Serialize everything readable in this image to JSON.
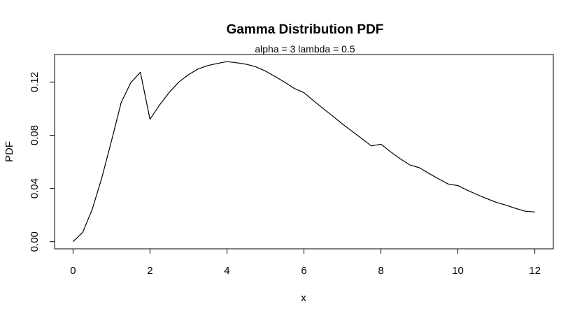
{
  "chart_data": {
    "type": "line",
    "title": "Gamma Distribution PDF",
    "subtitle": "alpha = 3  lambda = 0.5",
    "xlabel": "x",
    "ylabel": "PDF",
    "xlim": [
      -0.48,
      12.48
    ],
    "ylim": [
      -0.0054,
      0.1407
    ],
    "x_ticks": [
      0,
      2,
      4,
      6,
      8,
      10,
      12
    ],
    "x_tick_labels": [
      "0",
      "2",
      "4",
      "6",
      "8",
      "10",
      "12"
    ],
    "y_ticks": [
      0,
      0.04,
      0.08,
      0.12
    ],
    "y_tick_labels": [
      "0.00",
      "0.04",
      "0.08",
      "0.12"
    ],
    "grid": false,
    "series": [
      {
        "color": "#000000",
        "x": [
          0,
          0.25,
          0.5,
          0.75,
          1,
          1.25,
          1.5,
          1.75,
          2,
          2.25,
          2.5,
          2.75,
          3,
          3.25,
          3.5,
          3.75,
          4,
          4.25,
          4.5,
          4.75,
          5,
          5.25,
          5.5,
          5.75,
          6,
          6.25,
          6.5,
          6.75,
          7,
          7.25,
          7.5,
          7.75,
          8,
          8.25,
          8.5,
          8.75,
          9,
          9.25,
          9.5,
          9.75,
          10,
          10.25,
          10.5,
          10.75,
          11,
          11.25,
          11.5,
          11.75,
          12
        ],
        "values": [
          0,
          0.00689,
          0.02433,
          0.04833,
          0.07582,
          0.10452,
          0.11947,
          0.1274,
          0.09197,
          0.10281,
          0.11223,
          0.12006,
          0.12551,
          0.1298,
          0.1324,
          0.13399,
          0.13534,
          0.1345,
          0.13342,
          0.13147,
          0.12826,
          0.1242,
          0.1199,
          0.11522,
          0.11202,
          0.10592,
          0.10006,
          0.09436,
          0.08848,
          0.083,
          0.07757,
          0.07196,
          0.07327,
          0.06753,
          0.06236,
          0.05772,
          0.05555,
          0.05124,
          0.04718,
          0.04331,
          0.04211,
          0.03861,
          0.03535,
          0.03232,
          0.0295,
          0.0274,
          0.02496,
          0.02289,
          0.02231
        ]
      }
    ]
  }
}
